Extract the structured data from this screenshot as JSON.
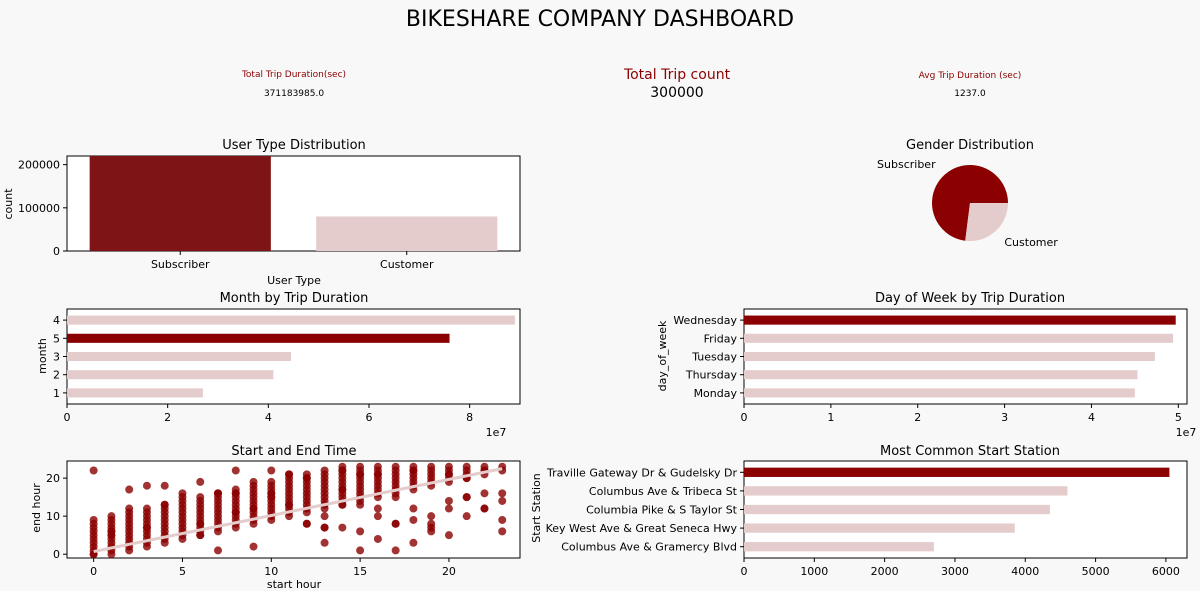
{
  "dashboard": {
    "title": "BIKESHARE COMPANY DASHBOARD",
    "kpis": {
      "total_duration_label": "Total Trip Duration(sec)",
      "total_duration_value": "371183985.0",
      "trip_count_label": "Total Trip count",
      "trip_count_value": "300000",
      "avg_duration_label": "Avg Trip Duration (sec)",
      "avg_duration_value": "1237.0"
    }
  },
  "colors": {
    "highlight": "#8b0000",
    "muted": "#e4cccc",
    "subscriber_bar": "#7f1416",
    "kpi_label": "#8b0000",
    "background": "#f8f8f8"
  },
  "chart_data": [
    {
      "id": "user-type",
      "type": "bar",
      "title": "User Type Distribution",
      "xlabel": "User Type",
      "ylabel": "count",
      "categories": [
        "Subscriber",
        "Customer"
      ],
      "values": [
        220000,
        80000
      ],
      "ylim": [
        0,
        220000
      ],
      "yticks": [
        0,
        100000,
        200000
      ],
      "ytick_labels": [
        "0",
        "100000",
        "200000"
      ],
      "highlight_index": 0
    },
    {
      "id": "gender",
      "type": "pie",
      "title": "Gender Distribution",
      "labels": [
        "Subscriber",
        "Customer"
      ],
      "values": [
        73,
        27
      ],
      "highlight_index": 0
    },
    {
      "id": "month",
      "type": "bar",
      "orientation": "horizontal",
      "title": "Month by Trip Duration",
      "ylabel": "month",
      "categories": [
        "4",
        "5",
        "3",
        "2",
        "1"
      ],
      "values": [
        89000000,
        76000000,
        44500000,
        41000000,
        27000000
      ],
      "xlim": [
        0,
        90000000
      ],
      "xticks": [
        0,
        20000000,
        40000000,
        60000000,
        80000000
      ],
      "xtick_labels": [
        "0",
        "2",
        "4",
        "6",
        "8"
      ],
      "offset_text": "1e7",
      "highlight_index": 1
    },
    {
      "id": "day-of-week",
      "type": "bar",
      "orientation": "horizontal",
      "title": "Day of Week by Trip Duration",
      "ylabel": "day_of_week",
      "categories": [
        "Wednesday",
        "Friday",
        "Tuesday",
        "Thursday",
        "Monday"
      ],
      "values": [
        49700000,
        49400000,
        47300000,
        45300000,
        45000000
      ],
      "xlim": [
        0,
        51000000
      ],
      "xticks": [
        0,
        10000000,
        20000000,
        30000000,
        40000000,
        50000000
      ],
      "xtick_labels": [
        "0",
        "1",
        "2",
        "3",
        "4",
        "5"
      ],
      "offset_text": "1e7",
      "highlight_index": 0
    },
    {
      "id": "start-end",
      "type": "scatter",
      "title": "Start and End Time",
      "xlabel": "start hour",
      "ylabel": "end hour",
      "xlim": [
        -1.5,
        24
      ],
      "ylim": [
        -1,
        24.5
      ],
      "xticks": [
        0,
        5,
        10,
        15,
        20
      ],
      "yticks": [
        0,
        10,
        20
      ],
      "trend": {
        "x0": 0,
        "y0": 0.7,
        "x1": 23,
        "y1": 22.5
      }
    },
    {
      "id": "start-station",
      "type": "bar",
      "orientation": "horizontal",
      "title": "Most Common Start Station",
      "ylabel": "Start Station",
      "categories": [
        "Traville Gateway Dr & Gudelsky Dr",
        "Columbus Ave & Tribeca St",
        "Columbia Pike & S Taylor St",
        "Key West Ave & Great Seneca Hwy",
        "Columbus Ave & Gramercy Blvd"
      ],
      "values": [
        6050,
        4600,
        4350,
        3850,
        2700
      ],
      "xlim": [
        0,
        6300
      ],
      "xticks": [
        0,
        1000,
        2000,
        3000,
        4000,
        5000,
        6000
      ],
      "xtick_labels": [
        "0",
        "1000",
        "2000",
        "3000",
        "4000",
        "5000",
        "6000"
      ],
      "highlight_index": 0
    }
  ]
}
